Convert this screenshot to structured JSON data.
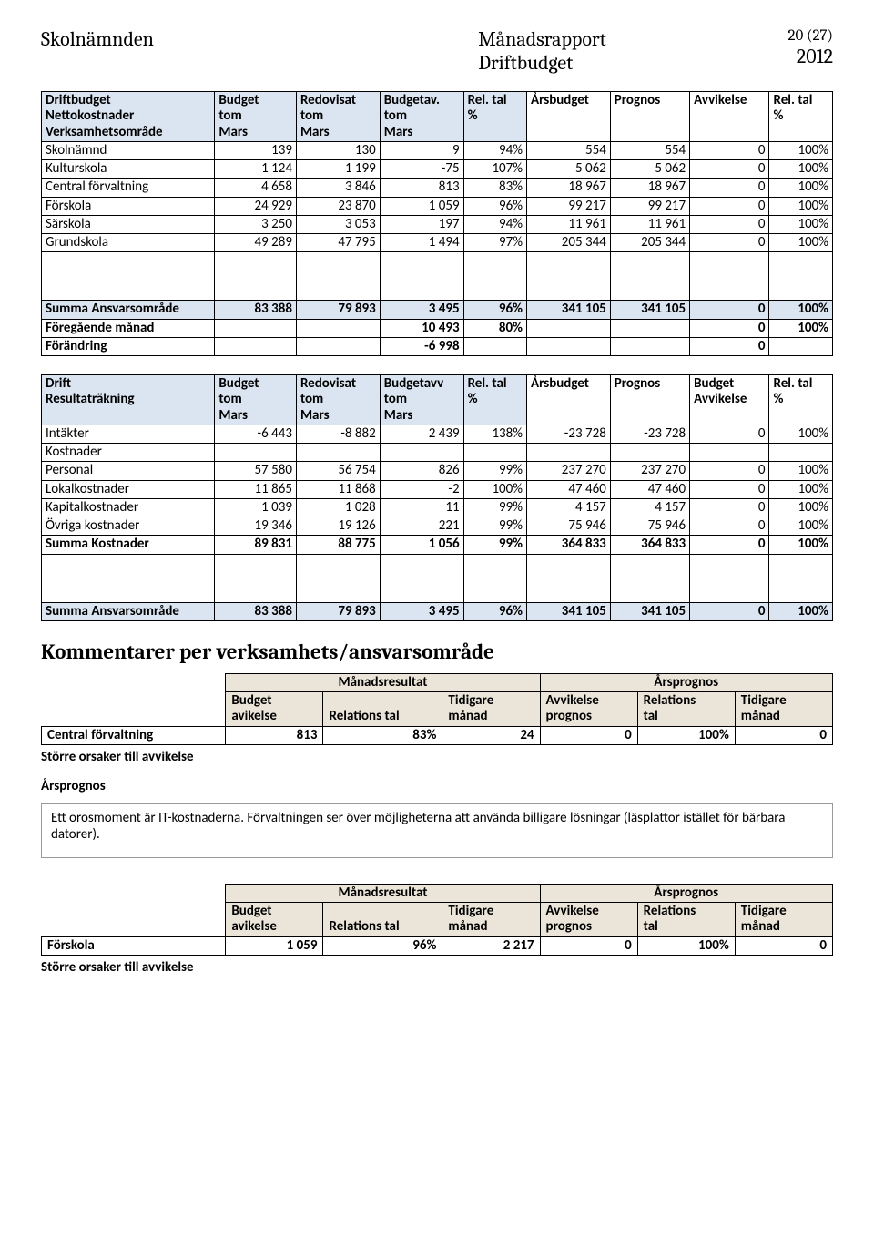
{
  "page": {
    "num": "20 (27)",
    "year": "2012"
  },
  "header": {
    "left": "Skolnämnden",
    "centerTop": "Månadsrapport",
    "centerBottom": "Driftbudget"
  },
  "t1": {
    "head": {
      "c0a": "Driftbudget",
      "c0b": "Nettokostnader",
      "c0c": "Verksamhetsområde",
      "c1a": "Budget",
      "c1b": "tom",
      "c1c": "Mars",
      "c2a": "Redovisat",
      "c2b": "tom",
      "c2c": "Mars",
      "c3a": "Budgetav.",
      "c3b": "tom",
      "c3c": "Mars",
      "c4a": "Rel. tal",
      "c4b": "%",
      "c5a": "Årsbudget",
      "c6a": "Prognos",
      "c7a": "Avvikelse",
      "c8a": "Rel. tal",
      "c8b": "%"
    },
    "rows": [
      {
        "label": "Skolnämnd",
        "v": [
          "139",
          "130",
          "9",
          "94%",
          "554",
          "554",
          "0",
          "100%"
        ]
      },
      {
        "label": "Kulturskola",
        "v": [
          "1 124",
          "1 199",
          "-75",
          "107%",
          "5 062",
          "5 062",
          "0",
          "100%"
        ]
      },
      {
        "label": "Central förvaltning",
        "v": [
          "4 658",
          "3 846",
          "813",
          "83%",
          "18 967",
          "18 967",
          "0",
          "100%"
        ]
      },
      {
        "label": "Förskola",
        "v": [
          "24 929",
          "23 870",
          "1 059",
          "96%",
          "99 217",
          "99 217",
          "0",
          "100%"
        ]
      },
      {
        "label": "Särskola",
        "v": [
          "3 250",
          "3 053",
          "197",
          "94%",
          "11 961",
          "11 961",
          "0",
          "100%"
        ]
      },
      {
        "label": "Grundskola",
        "v": [
          "49 289",
          "47 795",
          "1 494",
          "97%",
          "205 344",
          "205 344",
          "0",
          "100%"
        ]
      }
    ],
    "sum": {
      "label": "Summa Ansvarsområde",
      "v": [
        "83 388",
        "79 893",
        "3 495",
        "96%",
        "341 105",
        "341 105",
        "0",
        "100%"
      ]
    },
    "prev": {
      "label": "Föregående månad",
      "v": [
        "",
        "",
        "10 493",
        "80%",
        "",
        "",
        "0",
        "100%"
      ]
    },
    "change": {
      "label": "Förändring",
      "v": [
        "",
        "",
        "-6 998",
        "",
        "",
        "",
        "0",
        ""
      ]
    }
  },
  "t2": {
    "head": {
      "c0a": "Drift",
      "c0b": "Resultaträkning",
      "c1a": "Budget",
      "c1b": "tom",
      "c1c": "Mars",
      "c2a": "Redovisat",
      "c2b": "tom",
      "c2c": "Mars",
      "c3a": "Budgetavv",
      "c3b": "tom",
      "c3c": "Mars",
      "c4a": "Rel. tal",
      "c4b": "%",
      "c5a": "Årsbudget",
      "c6a": "Prognos",
      "c7a": "Budget",
      "c7b": "Avvikelse",
      "c8a": "Rel. tal",
      "c8b": "%"
    },
    "rows": [
      {
        "label": "Intäkter",
        "v": [
          "-6 443",
          "-8 882",
          "2 439",
          "138%",
          "-23 728",
          "-23 728",
          "0",
          "100%"
        ]
      },
      {
        "label": "Kostnader",
        "v": [
          "",
          "",
          "",
          "",
          "",
          "",
          "",
          ""
        ]
      },
      {
        "label": "Personal",
        "v": [
          "57 580",
          "56 754",
          "826",
          "99%",
          "237 270",
          "237 270",
          "0",
          "100%"
        ]
      },
      {
        "label": "Lokalkostnader",
        "v": [
          "11 865",
          "11 868",
          "-2",
          "100%",
          "47 460",
          "47 460",
          "0",
          "100%"
        ]
      },
      {
        "label": "Kapitalkostnader",
        "v": [
          "1 039",
          "1 028",
          "11",
          "99%",
          "4 157",
          "4 157",
          "0",
          "100%"
        ]
      },
      {
        "label": "Övriga kostnader",
        "v": [
          "19 346",
          "19 126",
          "221",
          "99%",
          "75 946",
          "75 946",
          "0",
          "100%"
        ]
      }
    ],
    "sumK": {
      "label": "Summa Kostnader",
      "v": [
        "89 831",
        "88 775",
        "1 056",
        "99%",
        "364 833",
        "364 833",
        "0",
        "100%"
      ]
    },
    "sumA": {
      "label": "Summa Ansvarsområde",
      "v": [
        "83 388",
        "79 893",
        "3 495",
        "96%",
        "341 105",
        "341 105",
        "0",
        "100%"
      ]
    }
  },
  "sectionTitle": "Kommentarer per verksamhets/ansvarsområde",
  "cmtHead": {
    "m": "Månadsresultat",
    "a": "Årsprognos",
    "m1": "Budget",
    "m1b": "avikelse",
    "m2": "Relations tal",
    "m3": "Tidigare",
    "m3b": "månad",
    "a1": "Avvikelse",
    "a1b": "prognos",
    "a2": "Relations",
    "a2b": "tal",
    "a3": "Tidigare",
    "a3b": "månad"
  },
  "cmt1": {
    "label": "Central förvaltning",
    "v": [
      "813",
      "83%",
      "24",
      "0",
      "100%",
      "0"
    ]
  },
  "labels": {
    "storre": "Större orsaker till avvikelse",
    "arsprognos": "Årsprognos"
  },
  "note": "Ett orosmoment är IT-kostnaderna. Förvaltningen ser över möjligheterna att använda billigare lösningar (läsplattor istället för bärbara datorer).",
  "cmt2": {
    "label": "Förskola",
    "v": [
      "1 059",
      "96%",
      "2 217",
      "0",
      "100%",
      "0"
    ]
  }
}
